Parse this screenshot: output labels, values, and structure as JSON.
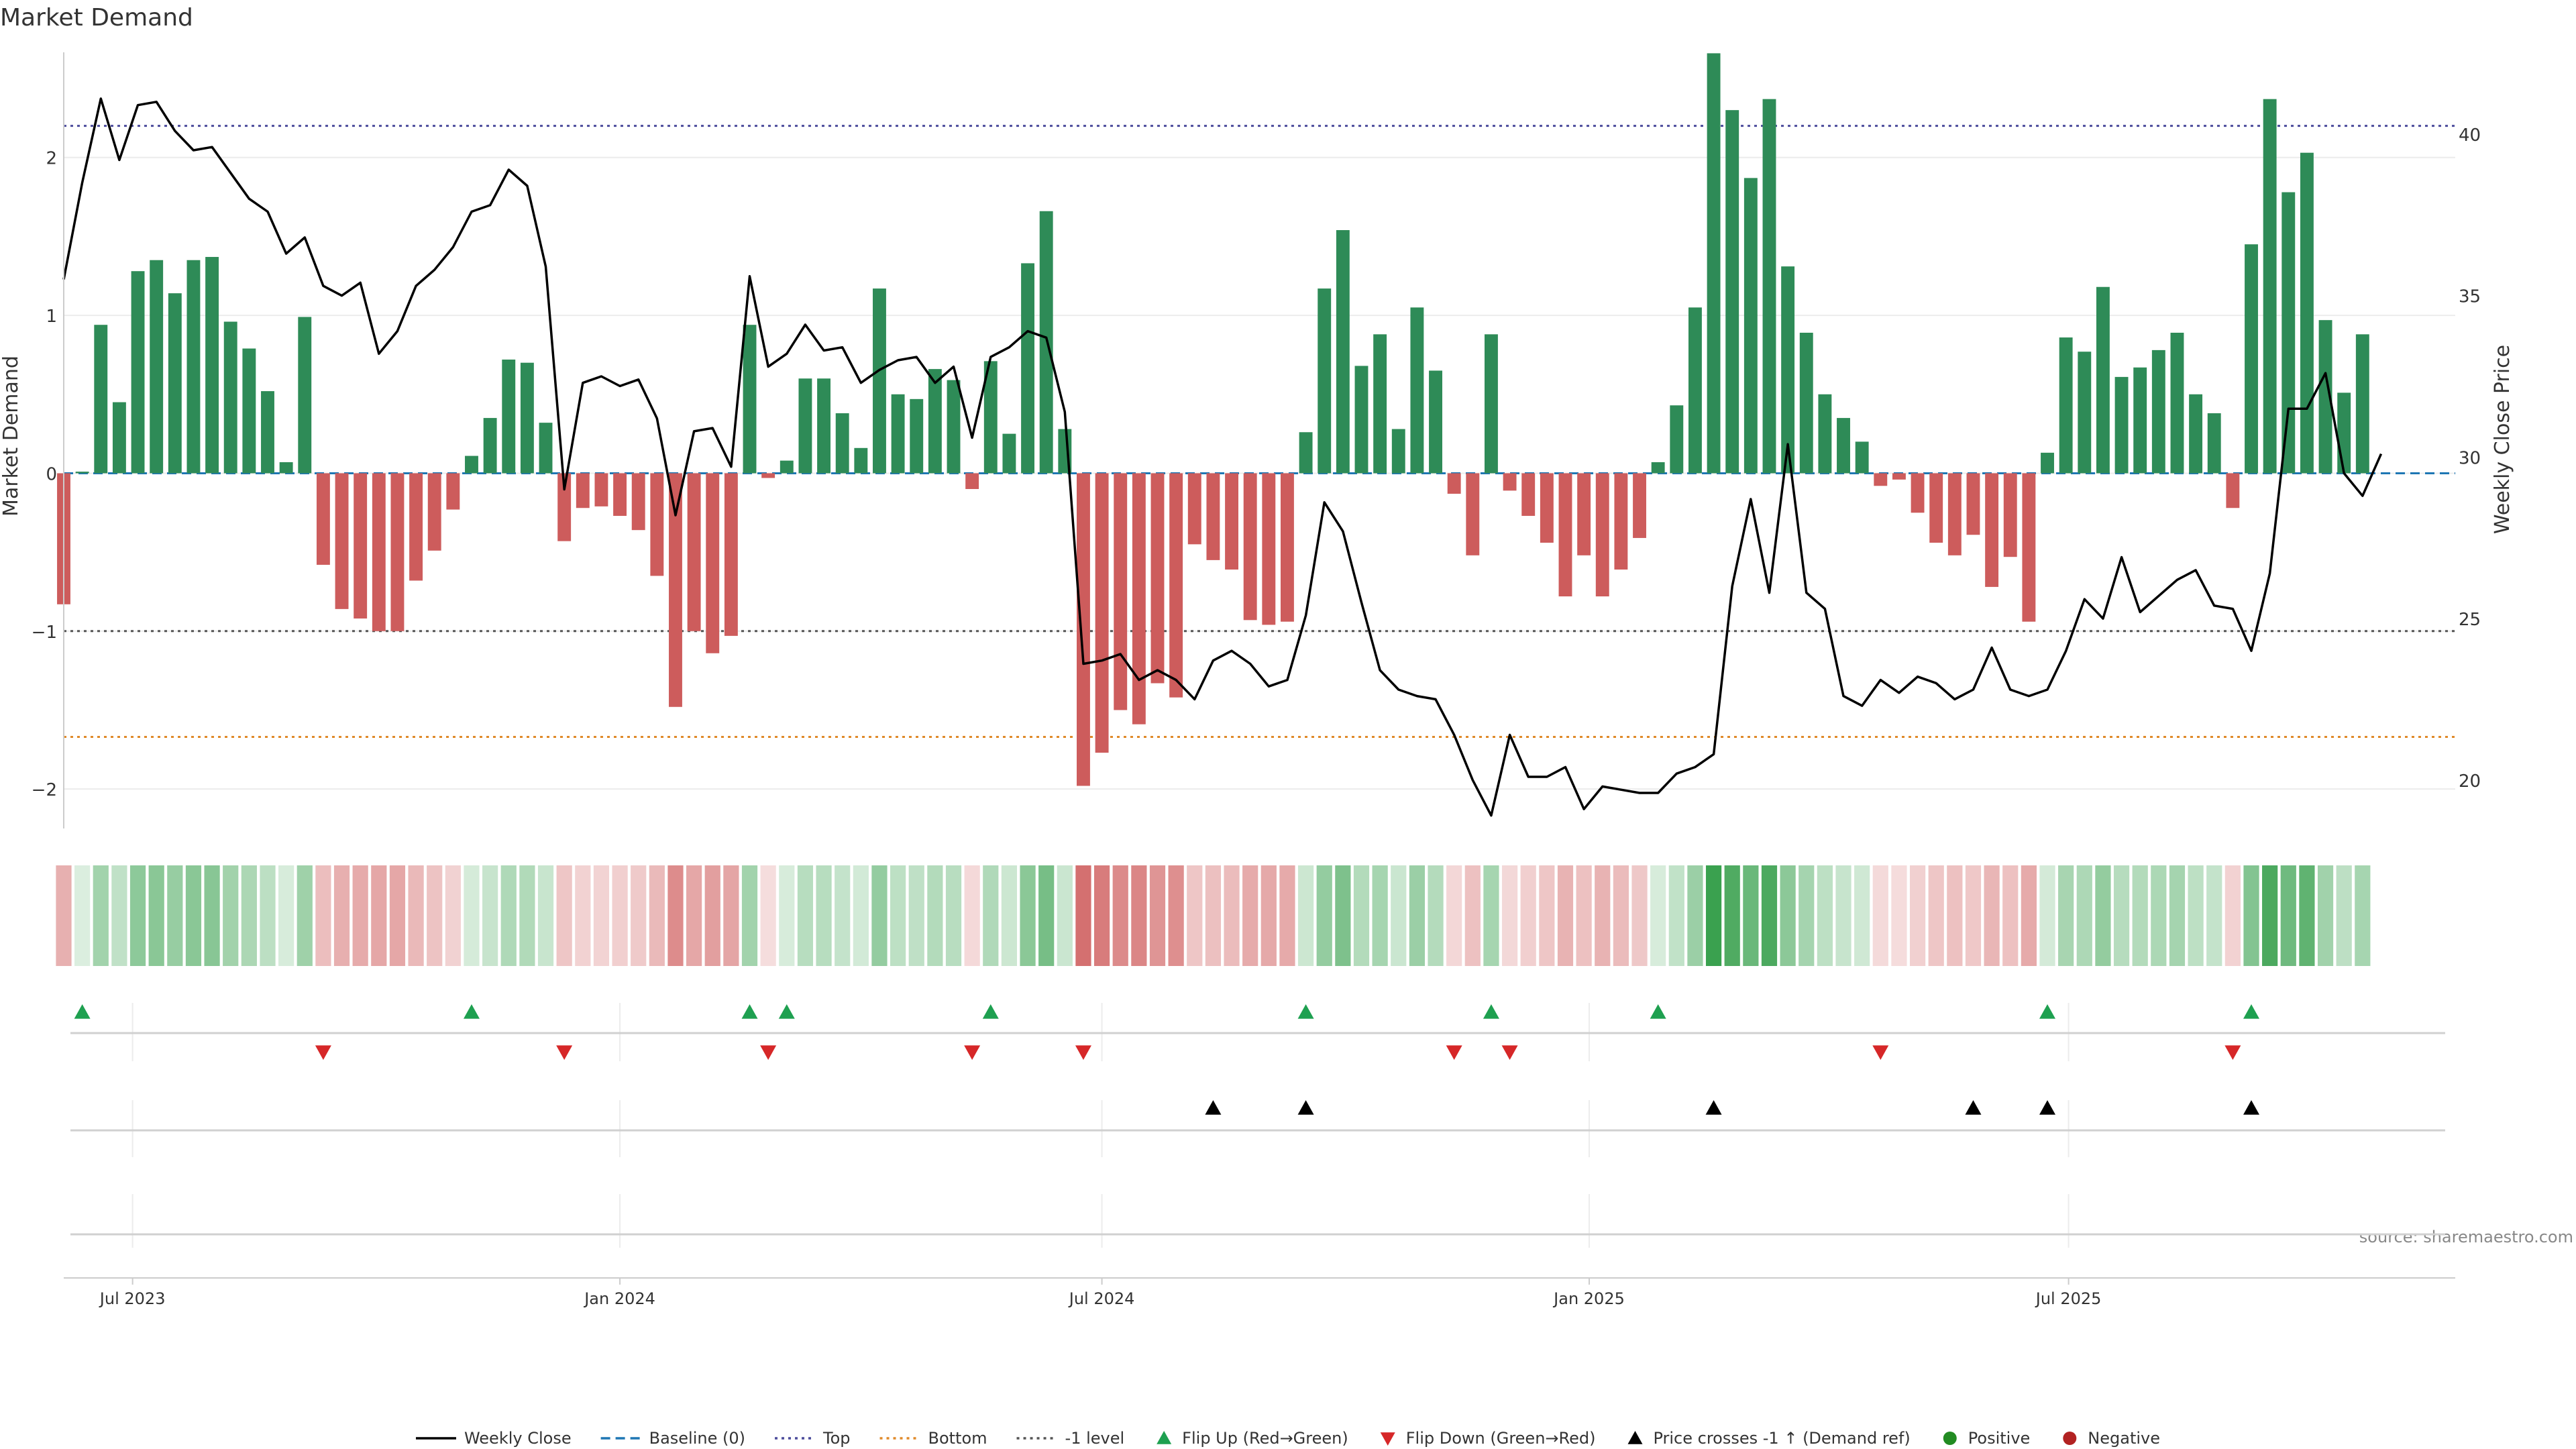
{
  "source_note": "source: sharemaestro.com",
  "chart_data": {
    "type": "bar",
    "title": "Market Demand",
    "ylabel_left": "Market Demand",
    "ylabel_right": "Weekly Close Price",
    "x_start": "2023-06-05",
    "x_end": "2025-11-24",
    "week_step_days": 7,
    "xticks": [
      {
        "date": "2023-07-01",
        "label": "Jul 2023"
      },
      {
        "date": "2024-01-01",
        "label": "Jan 2024"
      },
      {
        "date": "2024-07-01",
        "label": "Jul 2024"
      },
      {
        "date": "2025-01-01",
        "label": "Jan 2025"
      },
      {
        "date": "2025-07-01",
        "label": "Jul 2025"
      }
    ],
    "ylim_left": [
      -2.25,
      2.7
    ],
    "yticks_left": [
      {
        "v": -2,
        "label": "−2"
      },
      {
        "v": -1,
        "label": "−1"
      },
      {
        "v": 0,
        "label": "0"
      },
      {
        "v": 1,
        "label": "1"
      },
      {
        "v": 2,
        "label": "2"
      }
    ],
    "ylim_right": [
      18.5,
      42.7
    ],
    "yticks_right": [
      {
        "v": 20,
        "label": "20"
      },
      {
        "v": 25,
        "label": "25"
      },
      {
        "v": 30,
        "label": "30"
      },
      {
        "v": 35,
        "label": "35"
      },
      {
        "v": 40,
        "label": "40"
      }
    ],
    "reference_lines": {
      "top": 2.2,
      "bottom": -1.67,
      "minus_one": -1.0,
      "baseline": 0
    },
    "demand": [
      -0.83,
      0.01,
      0.94,
      0.45,
      1.28,
      1.35,
      1.14,
      1.35,
      1.37,
      0.96,
      0.79,
      0.52,
      0.07,
      0.99,
      -0.58,
      -0.86,
      -0.92,
      -1.0,
      -1.0,
      -0.68,
      -0.49,
      -0.23,
      0.11,
      0.35,
      0.72,
      0.7,
      0.32,
      -0.43,
      -0.22,
      -0.21,
      -0.27,
      -0.36,
      -0.65,
      -1.48,
      -1.0,
      -1.14,
      -1.03,
      0.94,
      -0.03,
      0.08,
      0.6,
      0.6,
      0.38,
      0.16,
      1.17,
      0.5,
      0.47,
      0.66,
      0.59,
      -0.1,
      0.71,
      0.25,
      1.33,
      1.66,
      0.28,
      -1.98,
      -1.77,
      -1.5,
      -1.59,
      -1.33,
      -1.42,
      -0.45,
      -0.55,
      -0.61,
      -0.93,
      -0.96,
      -0.94,
      0.26,
      1.17,
      1.54,
      0.68,
      0.88,
      0.28,
      1.05,
      0.65,
      -0.13,
      -0.52,
      0.88,
      -0.11,
      -0.27,
      -0.44,
      -0.78,
      -0.52,
      -0.78,
      -0.61,
      -0.41,
      0.07,
      0.43,
      1.05,
      2.66,
      2.3,
      1.87,
      2.37,
      1.31,
      0.89,
      0.5,
      0.35,
      0.2,
      -0.08,
      -0.04,
      -0.25,
      -0.44,
      -0.52,
      -0.39,
      -0.72,
      -0.53,
      -0.94,
      0.13,
      0.86,
      0.77,
      1.18,
      0.61,
      0.67,
      0.78,
      0.89,
      0.5,
      0.38,
      -0.22,
      1.45,
      2.37,
      1.78,
      2.03,
      0.97,
      0.51,
      0.88
    ],
    "close": [
      35.5,
      38.5,
      41.1,
      39.2,
      40.9,
      41.0,
      40.1,
      39.5,
      39.6,
      38.8,
      38.0,
      37.6,
      36.3,
      36.8,
      35.3,
      35.0,
      35.4,
      33.2,
      33.9,
      35.3,
      35.8,
      36.5,
      37.6,
      37.8,
      38.9,
      38.4,
      35.9,
      29.0,
      32.3,
      32.5,
      32.2,
      32.4,
      31.2,
      28.2,
      30.8,
      30.9,
      29.7,
      35.6,
      32.8,
      33.2,
      34.1,
      33.3,
      33.4,
      32.3,
      32.7,
      33.0,
      33.1,
      32.3,
      32.8,
      30.6,
      33.1,
      33.4,
      33.9,
      33.7,
      31.4,
      23.6,
      23.7,
      23.9,
      23.1,
      23.4,
      23.1,
      22.5,
      23.7,
      24.0,
      23.6,
      22.9,
      23.1,
      25.1,
      28.6,
      27.7,
      25.5,
      23.4,
      22.8,
      22.6,
      22.5,
      21.4,
      20.0,
      18.9,
      21.4,
      20.1,
      20.1,
      20.4,
      19.1,
      19.8,
      19.7,
      19.6,
      19.6,
      20.2,
      20.4,
      20.8,
      26.0,
      28.7,
      25.8,
      30.4,
      25.8,
      25.3,
      22.6,
      22.3,
      23.1,
      22.7,
      23.2,
      23.0,
      22.5,
      22.8,
      24.1,
      22.8,
      22.6,
      22.8,
      24.0,
      25.6,
      25.0,
      26.9,
      25.2,
      25.7,
      26.2,
      26.5,
      25.4,
      25.3,
      24.0,
      26.4,
      31.5,
      31.5,
      32.6,
      29.5,
      28.8,
      30.1
    ],
    "flip_up_weeks": [
      1,
      22,
      37,
      39,
      50,
      67,
      77,
      86,
      107,
      118
    ],
    "flip_down_weeks": [
      14,
      27,
      38,
      49,
      55,
      75,
      78,
      98,
      117
    ],
    "price_cross_weeks": [
      62,
      67,
      89,
      103,
      107,
      118
    ],
    "legend": [
      {
        "label": "Weekly Close",
        "kind": "line-solid",
        "color": "#000000"
      },
      {
        "label": "Baseline (0)",
        "kind": "line-dashed",
        "color": "#1f77b4"
      },
      {
        "label": "Top",
        "kind": "line-dotted",
        "color": "#4c4c9c"
      },
      {
        "label": "Bottom",
        "kind": "line-dotted",
        "color": "#e08a2a"
      },
      {
        "label": "-1 level",
        "kind": "line-dotted",
        "color": "#555555"
      },
      {
        "label": "Flip Up (Red→Green)",
        "kind": "triangle-up",
        "color": "#1ea050"
      },
      {
        "label": "Flip Down (Green→Red)",
        "kind": "triangle-down",
        "color": "#d62728"
      },
      {
        "label": "Price crosses -1 ↑ (Demand ref)",
        "kind": "triangle-up",
        "color": "#000000"
      },
      {
        "label": "Positive",
        "kind": "circle",
        "color": "#228b22"
      },
      {
        "label": "Negative",
        "kind": "circle",
        "color": "#b22222"
      }
    ],
    "colors": {
      "positive_bar": "#2e8b57",
      "negative_bar": "#cd5c5c",
      "strip_positive": "#3aa14f",
      "strip_negative": "#c94a4a",
      "grid": "#ececec",
      "axis": "#cccccc",
      "text": "#333333"
    }
  }
}
